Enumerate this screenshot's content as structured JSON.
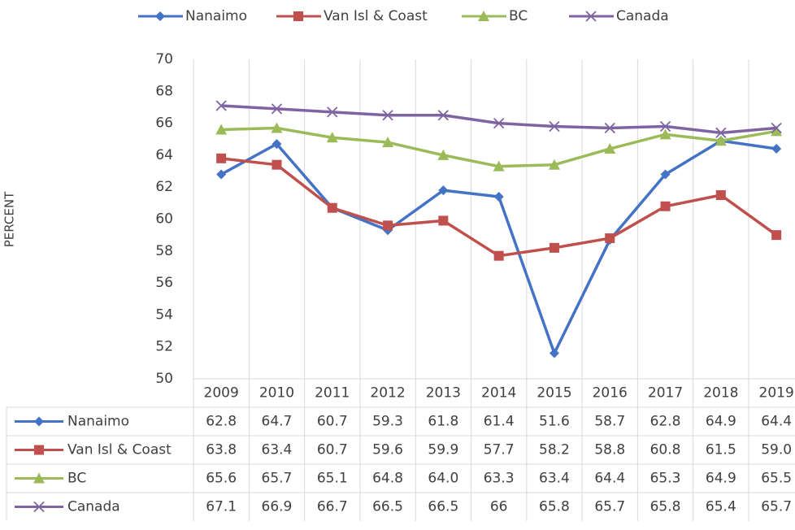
{
  "chart_data": {
    "type": "line",
    "y_label": "PERCENT",
    "categories": [
      "2009",
      "2010",
      "2011",
      "2012",
      "2013",
      "2014",
      "2015",
      "2016",
      "2017",
      "2018",
      "2019"
    ],
    "series": [
      {
        "name": "Nanaimo",
        "color": "#4472c4",
        "marker": "diamond",
        "values": [
          62.8,
          64.7,
          60.7,
          59.3,
          61.8,
          61.4,
          51.6,
          58.7,
          62.8,
          64.9,
          64.4
        ]
      },
      {
        "name": "Van Isl & Coast",
        "color": "#c0504d",
        "marker": "square",
        "values": [
          63.8,
          63.4,
          60.7,
          59.6,
          59.9,
          57.7,
          58.2,
          58.8,
          60.8,
          61.5,
          59
        ],
        "value_labels": [
          "63.8",
          "63.4",
          "60.7",
          "59.6",
          "59.9",
          "57.7",
          "58.2",
          "58.8",
          "60.8",
          "61.5",
          "59.0"
        ]
      },
      {
        "name": "BC",
        "color": "#9bbb59",
        "marker": "triangle",
        "values": [
          65.6,
          65.7,
          65.1,
          64.8,
          64,
          63.3,
          63.4,
          64.4,
          65.3,
          64.9,
          65.5
        ],
        "value_labels": [
          "65.6",
          "65.7",
          "65.1",
          "64.8",
          "64.0",
          "63.3",
          "63.4",
          "64.4",
          "65.3",
          "64.9",
          "65.5"
        ]
      },
      {
        "name": "Canada",
        "color": "#8064a2",
        "marker": "x",
        "values": [
          67.1,
          66.9,
          66.7,
          66.5,
          66.5,
          66,
          65.8,
          65.7,
          65.8,
          65.4,
          65.7
        ]
      }
    ],
    "ylim": [
      50,
      70
    ],
    "yticks": [
      50,
      52,
      54,
      56,
      58,
      60,
      62,
      64,
      66,
      68,
      70
    ],
    "legend": "top",
    "data_table": true
  }
}
